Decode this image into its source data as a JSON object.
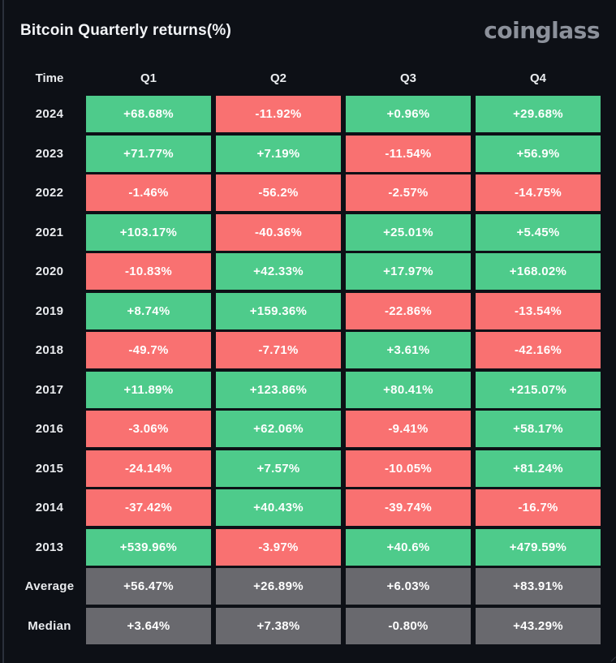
{
  "header": {
    "title": "Bitcoin Quarterly returns(%)",
    "logo": "coinglass"
  },
  "colors": {
    "background": "#0D1016",
    "positive": "#4ECB8B",
    "negative": "#F97171",
    "summary": "#69696E",
    "cell_text": "#FFFFFF",
    "label_text": "#E9EBEE",
    "logo_text": "#8C919B"
  },
  "table": {
    "columns": [
      "Time",
      "Q1",
      "Q2",
      "Q3",
      "Q4"
    ],
    "rows": [
      {
        "label": "2024",
        "cells": [
          {
            "value": "+68.68%",
            "sentiment": "positive"
          },
          {
            "value": "-11.92%",
            "sentiment": "negative"
          },
          {
            "value": "+0.96%",
            "sentiment": "positive"
          },
          {
            "value": "+29.68%",
            "sentiment": "positive"
          }
        ]
      },
      {
        "label": "2023",
        "cells": [
          {
            "value": "+71.77%",
            "sentiment": "positive"
          },
          {
            "value": "+7.19%",
            "sentiment": "positive"
          },
          {
            "value": "-11.54%",
            "sentiment": "negative"
          },
          {
            "value": "+56.9%",
            "sentiment": "positive"
          }
        ]
      },
      {
        "label": "2022",
        "cells": [
          {
            "value": "-1.46%",
            "sentiment": "negative"
          },
          {
            "value": "-56.2%",
            "sentiment": "negative"
          },
          {
            "value": "-2.57%",
            "sentiment": "negative"
          },
          {
            "value": "-14.75%",
            "sentiment": "negative"
          }
        ]
      },
      {
        "label": "2021",
        "cells": [
          {
            "value": "+103.17%",
            "sentiment": "positive"
          },
          {
            "value": "-40.36%",
            "sentiment": "negative"
          },
          {
            "value": "+25.01%",
            "sentiment": "positive"
          },
          {
            "value": "+5.45%",
            "sentiment": "positive"
          }
        ]
      },
      {
        "label": "2020",
        "cells": [
          {
            "value": "-10.83%",
            "sentiment": "negative"
          },
          {
            "value": "+42.33%",
            "sentiment": "positive"
          },
          {
            "value": "+17.97%",
            "sentiment": "positive"
          },
          {
            "value": "+168.02%",
            "sentiment": "positive"
          }
        ]
      },
      {
        "label": "2019",
        "cells": [
          {
            "value": "+8.74%",
            "sentiment": "positive"
          },
          {
            "value": "+159.36%",
            "sentiment": "positive"
          },
          {
            "value": "-22.86%",
            "sentiment": "negative"
          },
          {
            "value": "-13.54%",
            "sentiment": "negative"
          }
        ]
      },
      {
        "label": "2018",
        "cells": [
          {
            "value": "-49.7%",
            "sentiment": "negative"
          },
          {
            "value": "-7.71%",
            "sentiment": "negative"
          },
          {
            "value": "+3.61%",
            "sentiment": "positive"
          },
          {
            "value": "-42.16%",
            "sentiment": "negative"
          }
        ]
      },
      {
        "label": "2017",
        "cells": [
          {
            "value": "+11.89%",
            "sentiment": "positive"
          },
          {
            "value": "+123.86%",
            "sentiment": "positive"
          },
          {
            "value": "+80.41%",
            "sentiment": "positive"
          },
          {
            "value": "+215.07%",
            "sentiment": "positive"
          }
        ]
      },
      {
        "label": "2016",
        "cells": [
          {
            "value": "-3.06%",
            "sentiment": "negative"
          },
          {
            "value": "+62.06%",
            "sentiment": "positive"
          },
          {
            "value": "-9.41%",
            "sentiment": "negative"
          },
          {
            "value": "+58.17%",
            "sentiment": "positive"
          }
        ]
      },
      {
        "label": "2015",
        "cells": [
          {
            "value": "-24.14%",
            "sentiment": "negative"
          },
          {
            "value": "+7.57%",
            "sentiment": "positive"
          },
          {
            "value": "-10.05%",
            "sentiment": "negative"
          },
          {
            "value": "+81.24%",
            "sentiment": "positive"
          }
        ]
      },
      {
        "label": "2014",
        "cells": [
          {
            "value": "-37.42%",
            "sentiment": "negative"
          },
          {
            "value": "+40.43%",
            "sentiment": "positive"
          },
          {
            "value": "-39.74%",
            "sentiment": "negative"
          },
          {
            "value": "-16.7%",
            "sentiment": "negative"
          }
        ]
      },
      {
        "label": "2013",
        "cells": [
          {
            "value": "+539.96%",
            "sentiment": "positive"
          },
          {
            "value": "-3.97%",
            "sentiment": "negative"
          },
          {
            "value": "+40.6%",
            "sentiment": "positive"
          },
          {
            "value": "+479.59%",
            "sentiment": "positive"
          }
        ]
      },
      {
        "label": "Average",
        "cells": [
          {
            "value": "+56.47%",
            "sentiment": "summary"
          },
          {
            "value": "+26.89%",
            "sentiment": "summary"
          },
          {
            "value": "+6.03%",
            "sentiment": "summary"
          },
          {
            "value": "+83.91%",
            "sentiment": "summary"
          }
        ]
      },
      {
        "label": "Median",
        "cells": [
          {
            "value": "+3.64%",
            "sentiment": "summary"
          },
          {
            "value": "+7.38%",
            "sentiment": "summary"
          },
          {
            "value": "-0.80%",
            "sentiment": "summary"
          },
          {
            "value": "+43.29%",
            "sentiment": "summary"
          }
        ]
      }
    ]
  },
  "chart_data": {
    "type": "heatmap",
    "title": "Bitcoin Quarterly returns(%)",
    "unit": "%",
    "columns": [
      "Q1",
      "Q2",
      "Q3",
      "Q4"
    ],
    "rows": [
      "2024",
      "2023",
      "2022",
      "2021",
      "2020",
      "2019",
      "2018",
      "2017",
      "2016",
      "2015",
      "2014",
      "2013",
      "Average",
      "Median"
    ],
    "values": [
      [
        68.68,
        -11.92,
        0.96,
        29.68
      ],
      [
        71.77,
        7.19,
        -11.54,
        56.9
      ],
      [
        -1.46,
        -56.2,
        -2.57,
        -14.75
      ],
      [
        103.17,
        -40.36,
        25.01,
        5.45
      ],
      [
        -10.83,
        42.33,
        17.97,
        168.02
      ],
      [
        8.74,
        159.36,
        -22.86,
        -13.54
      ],
      [
        -49.7,
        -7.71,
        3.61,
        -42.16
      ],
      [
        11.89,
        123.86,
        80.41,
        215.07
      ],
      [
        -3.06,
        62.06,
        -9.41,
        58.17
      ],
      [
        -24.14,
        7.57,
        -10.05,
        81.24
      ],
      [
        -37.42,
        40.43,
        -39.74,
        -16.7
      ],
      [
        539.96,
        -3.97,
        40.6,
        479.59
      ],
      [
        56.47,
        26.89,
        6.03,
        83.91
      ],
      [
        3.64,
        7.38,
        -0.8,
        43.29
      ]
    ],
    "color_rule": "positive returns green (#4ECB8B), negative returns red (#F97171), Average/Median summary rows gray (#69696E)",
    "legend_position": "none",
    "grid": false
  }
}
